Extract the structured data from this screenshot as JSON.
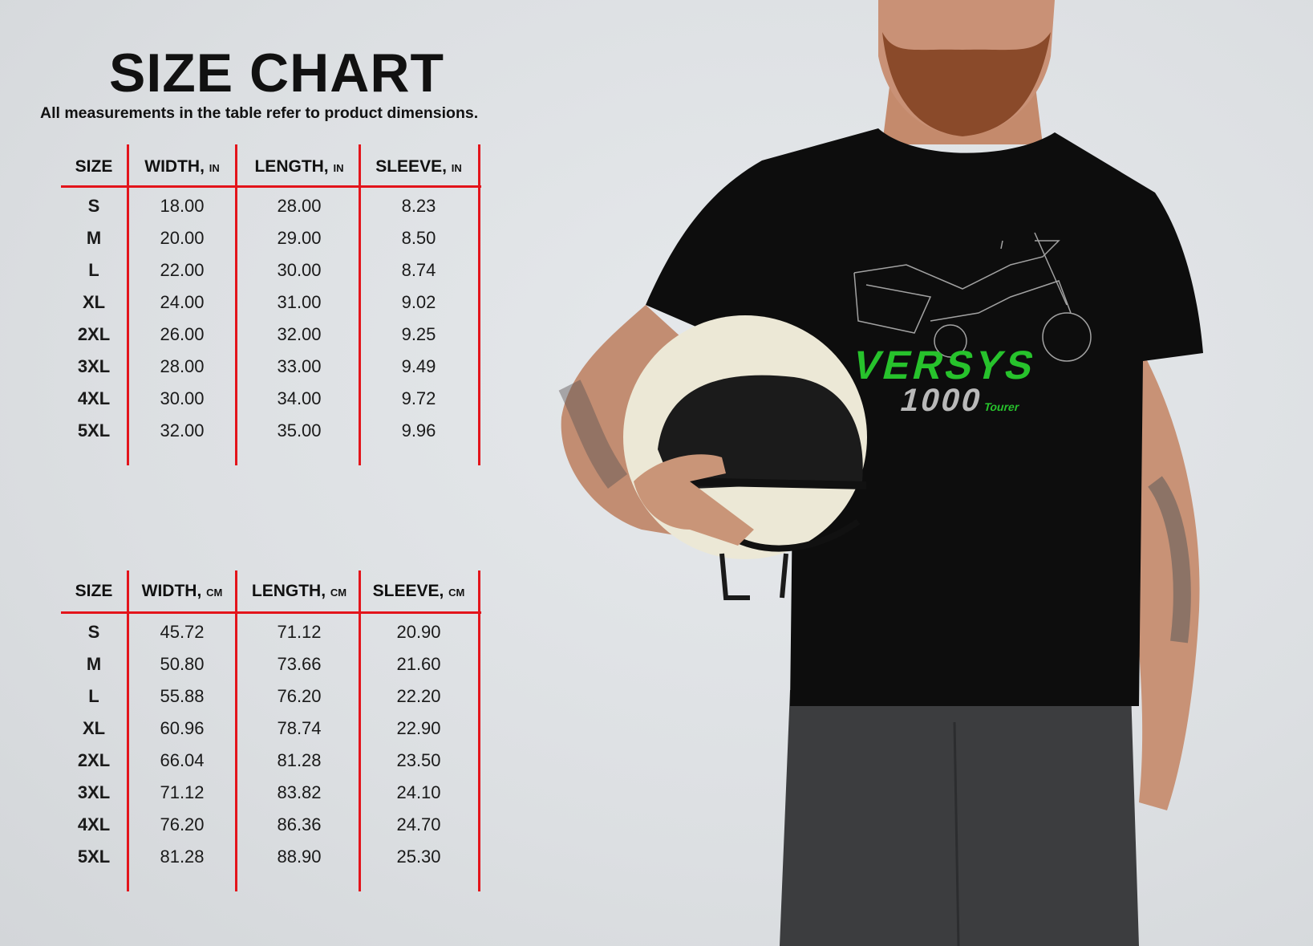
{
  "header": {
    "title": "SIZE CHART",
    "subtitle": "All measurements in the table refer to product dimensions."
  },
  "colors": {
    "grid_lines": "#e3141b",
    "logo_green": "#27c22c",
    "background": "#dfe2e5"
  },
  "tables": [
    {
      "unit": "IN",
      "columns": [
        {
          "label": "SIZE",
          "unit": ""
        },
        {
          "label": "WIDTH,",
          "unit": "IN"
        },
        {
          "label": "LENGTH,",
          "unit": "IN"
        },
        {
          "label": "SLEEVE,",
          "unit": "IN"
        }
      ],
      "rows": [
        [
          "S",
          "18.00",
          "28.00",
          "8.23"
        ],
        [
          "M",
          "20.00",
          "29.00",
          "8.50"
        ],
        [
          "L",
          "22.00",
          "30.00",
          "8.74"
        ],
        [
          "XL",
          "24.00",
          "31.00",
          "9.02"
        ],
        [
          "2XL",
          "26.00",
          "32.00",
          "9.25"
        ],
        [
          "3XL",
          "28.00",
          "33.00",
          "9.49"
        ],
        [
          "4XL",
          "30.00",
          "34.00",
          "9.72"
        ],
        [
          "5XL",
          "32.00",
          "35.00",
          "9.96"
        ]
      ]
    },
    {
      "unit": "CM",
      "columns": [
        {
          "label": "SIZE",
          "unit": ""
        },
        {
          "label": "WIDTH,",
          "unit": "CM"
        },
        {
          "label": "LENGTH,",
          "unit": "CM"
        },
        {
          "label": "SLEEVE,",
          "unit": "CM"
        }
      ],
      "rows": [
        [
          "S",
          "45.72",
          "71.12",
          "20.90"
        ],
        [
          "M",
          "50.80",
          "73.66",
          "21.60"
        ],
        [
          "L",
          "55.88",
          "76.20",
          "22.20"
        ],
        [
          "XL",
          "60.96",
          "78.74",
          "22.90"
        ],
        [
          "2XL",
          "66.04",
          "81.28",
          "23.50"
        ],
        [
          "3XL",
          "71.12",
          "83.82",
          "24.10"
        ],
        [
          "4XL",
          "76.20",
          "86.36",
          "24.70"
        ],
        [
          "5XL",
          "81.28",
          "88.90",
          "25.30"
        ]
      ]
    }
  ],
  "logo": {
    "line1": "VERSYS",
    "line2": "1000",
    "line3": "Tourer"
  }
}
